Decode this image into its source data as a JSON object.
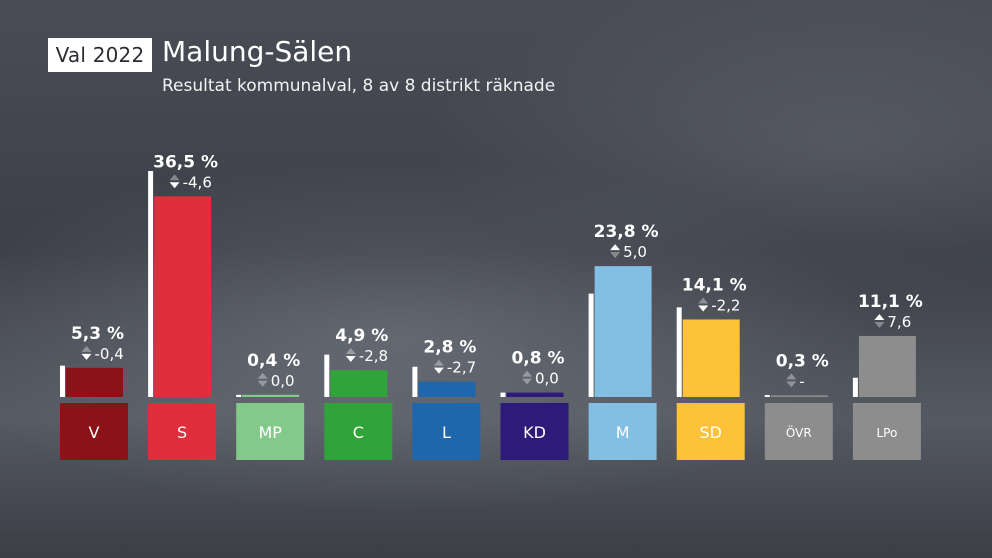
{
  "header": {
    "badge": "Val 2022",
    "title": "Malung-Sälen",
    "subtitle": "Resultat kommunalval, 8 av 8 distrikt räknade"
  },
  "chart_data": {
    "type": "bar",
    "categories": [
      "V",
      "S",
      "MP",
      "C",
      "L",
      "KD",
      "M",
      "SD",
      "ÖVR",
      "LPo"
    ],
    "series": [
      {
        "values": [
          5.3,
          36.5,
          0.4,
          4.9,
          2.8,
          0.8,
          23.8,
          14.1,
          0.3,
          11.1
        ]
      },
      {
        "values": [
          5.7,
          41.1,
          0.4,
          7.7,
          5.5,
          0.8,
          18.8,
          16.3,
          0.3,
          3.5
        ]
      }
    ],
    "value_labels": [
      "5,3 %",
      "36,5 %",
      "0,4 %",
      "4,9 %",
      "2,8 %",
      "0,8 %",
      "23,8 %",
      "14,1 %",
      "0,3 %",
      "11,1 %"
    ],
    "change_labels": [
      "-0,4",
      "-4,6",
      "0,0",
      "-2,8",
      "-2,7",
      "0,0",
      "5,0",
      "-2,2",
      "-",
      "7,6"
    ],
    "change_direction": [
      "down",
      "down",
      "none",
      "down",
      "down",
      "none",
      "up",
      "down",
      "none",
      "up"
    ],
    "colors": [
      "#8b1216",
      "#e02e3c",
      "#83c98a",
      "#30a43a",
      "#1f67ad",
      "#2e1a78",
      "#82bfe3",
      "#fdc23a",
      "#8d8d8d",
      "#8d8d8d"
    ],
    "previous_color": "#ffffff",
    "ylim": [
      0,
      41.1
    ],
    "grid": false,
    "legend": "none"
  }
}
